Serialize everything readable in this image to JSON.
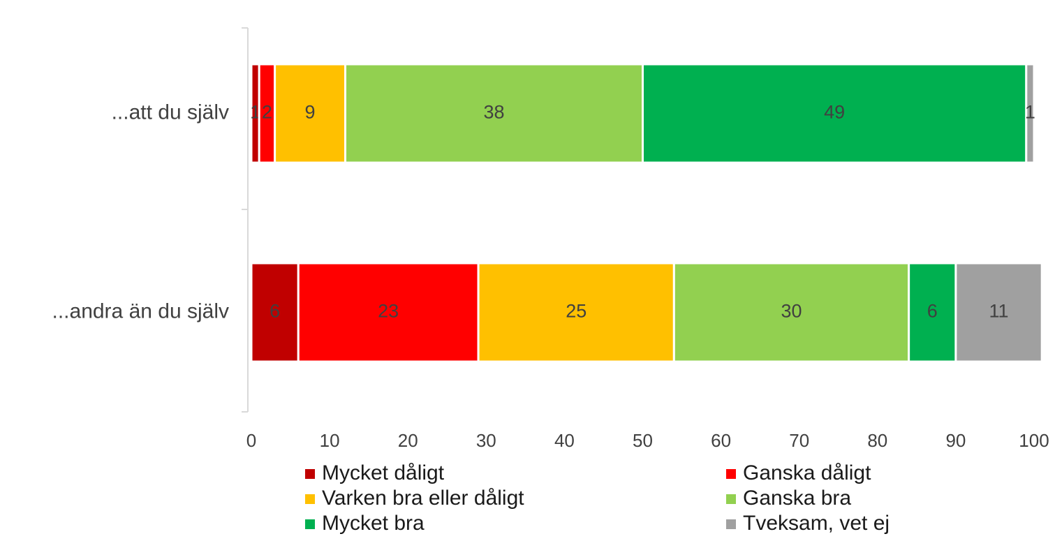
{
  "chart_data": {
    "type": "stacked_bar",
    "orientation": "horizontal",
    "categories": [
      "...att du själv",
      "...andra än du själv"
    ],
    "series": [
      {
        "name": "Mycket dåligt",
        "color": "#c00000",
        "values": [
          1,
          6
        ]
      },
      {
        "name": "Ganska dåligt",
        "color": "#ff0000",
        "values": [
          2,
          23
        ]
      },
      {
        "name": "Varken bra eller dåligt",
        "color": "#ffc000",
        "values": [
          9,
          25
        ]
      },
      {
        "name": "Ganska bra",
        "color": "#92d050",
        "values": [
          38,
          30
        ]
      },
      {
        "name": "Mycket bra",
        "color": "#00b050",
        "values": [
          49,
          6
        ]
      },
      {
        "name": "Tveksam, vet ej",
        "color": "#a0a0a0",
        "values": [
          1,
          11
        ]
      }
    ],
    "xlim": [
      0,
      100
    ],
    "xticks": [
      0,
      10,
      20,
      30,
      40,
      50,
      60,
      70,
      80,
      90,
      100
    ],
    "legend": "bottom"
  }
}
